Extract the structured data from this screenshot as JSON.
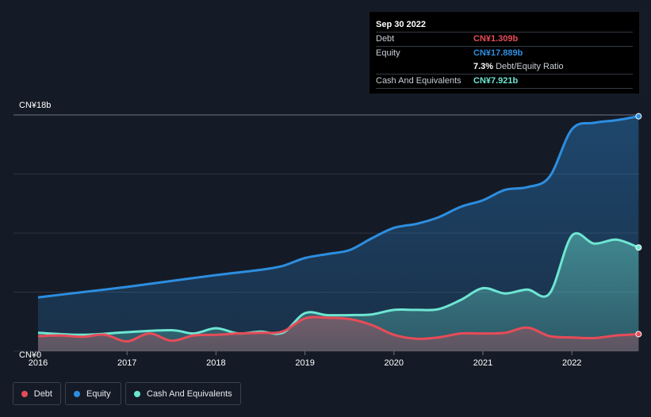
{
  "tooltip": {
    "date": "Sep 30 2022",
    "debt_label": "Debt",
    "debt_value": "CN¥1.309b",
    "equity_label": "Equity",
    "equity_value": "CN¥17.889b",
    "ratio_value": "7.3%",
    "ratio_label": "Debt/Equity Ratio",
    "cash_label": "Cash And Equivalents",
    "cash_value": "CN¥7.921b"
  },
  "legend": {
    "debt": "Debt",
    "equity": "Equity",
    "cash": "Cash And Equivalents"
  },
  "colors": {
    "debt": "#e64c58",
    "equity": "#2d8ee0",
    "cash": "#6ee6d2",
    "background": "#151b26"
  },
  "chart_data": {
    "type": "area",
    "ylim": [
      0,
      18
    ],
    "y_tick_labels": [
      "CN¥0",
      "CN¥18b"
    ],
    "x_tick_labels": [
      "2016",
      "2017",
      "2018",
      "2019",
      "2020",
      "2021",
      "2022"
    ],
    "x_ticks": [
      2016,
      2017,
      2018,
      2019,
      2020,
      2021,
      2022
    ],
    "xlim": [
      2015.75,
      2022.75
    ],
    "grid": true,
    "series": [
      {
        "name": "Equity",
        "x": [
          2016.0,
          2016.5,
          2017.0,
          2017.5,
          2018.0,
          2018.5,
          2018.75,
          2019.0,
          2019.25,
          2019.5,
          2019.75,
          2020.0,
          2020.25,
          2020.5,
          2020.75,
          2021.0,
          2021.25,
          2021.5,
          2021.75,
          2022.0,
          2022.25,
          2022.5,
          2022.75
        ],
        "y": [
          4.1,
          4.5,
          4.9,
          5.35,
          5.8,
          6.2,
          6.5,
          7.1,
          7.4,
          7.7,
          8.6,
          9.4,
          9.7,
          10.2,
          11.0,
          11.5,
          12.3,
          12.5,
          13.3,
          16.9,
          17.4,
          17.6,
          17.9
        ]
      },
      {
        "name": "Cash And Equivalents",
        "x": [
          2016.0,
          2016.5,
          2017.0,
          2017.5,
          2017.75,
          2018.0,
          2018.25,
          2018.5,
          2018.75,
          2019.0,
          2019.25,
          2019.5,
          2019.75,
          2020.0,
          2020.25,
          2020.5,
          2020.75,
          2021.0,
          2021.25,
          2021.5,
          2021.75,
          2022.0,
          2022.25,
          2022.5,
          2022.75
        ],
        "y": [
          1.4,
          1.25,
          1.45,
          1.6,
          1.35,
          1.75,
          1.35,
          1.5,
          1.4,
          2.9,
          2.75,
          2.75,
          2.8,
          3.15,
          3.15,
          3.2,
          3.9,
          4.8,
          4.4,
          4.7,
          4.4,
          8.8,
          8.2,
          8.5,
          7.9
        ]
      },
      {
        "name": "Debt",
        "x": [
          2016.0,
          2016.25,
          2016.5,
          2016.75,
          2017.0,
          2017.25,
          2017.5,
          2017.75,
          2018.0,
          2018.25,
          2018.5,
          2018.75,
          2019.0,
          2019.25,
          2019.5,
          2019.75,
          2020.0,
          2020.25,
          2020.5,
          2020.75,
          2021.0,
          2021.25,
          2021.5,
          2021.75,
          2022.0,
          2022.25,
          2022.5,
          2022.75
        ],
        "y": [
          1.15,
          1.2,
          1.1,
          1.25,
          0.75,
          1.35,
          0.8,
          1.2,
          1.25,
          1.35,
          1.4,
          1.5,
          2.5,
          2.55,
          2.45,
          2.0,
          1.25,
          0.95,
          1.05,
          1.35,
          1.35,
          1.4,
          1.8,
          1.15,
          1.05,
          1.0,
          1.2,
          1.3
        ]
      }
    ]
  }
}
